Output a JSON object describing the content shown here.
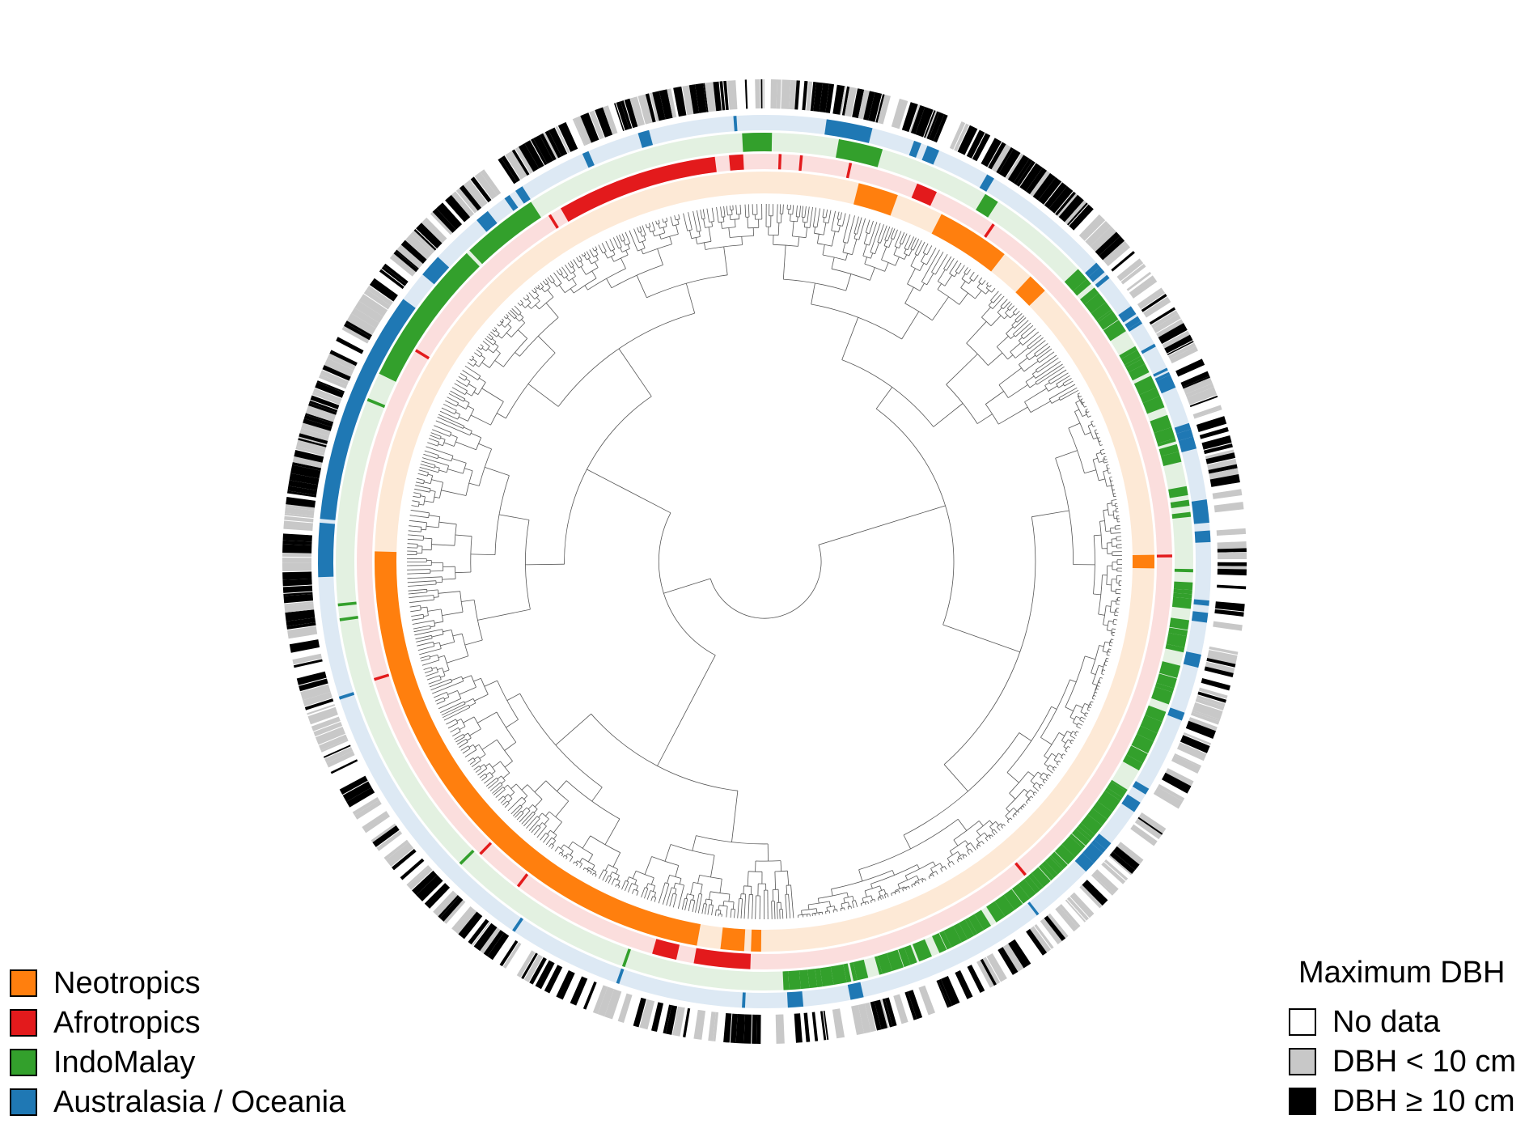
{
  "region_legend": {
    "items": [
      {
        "label": "Neotropics",
        "color": "#ff7f0e"
      },
      {
        "label": "Afrotropics",
        "color": "#e31a1c"
      },
      {
        "label": "IndoMalay",
        "color": "#33a02c"
      },
      {
        "label": "Australasia / Oceania",
        "color": "#1f78b4"
      }
    ]
  },
  "dbh_legend": {
    "title": "Maximum DBH",
    "items": [
      {
        "label": "No data",
        "color": "#ffffff"
      },
      {
        "label": "DBH < 10 cm",
        "color": "#c8c8c8"
      },
      {
        "label": "DBH ≥ 10 cm",
        "color": "#000000"
      }
    ]
  },
  "ring_colors": {
    "neotropics": "#ff7f0e",
    "neotropics_bg": "#fde9d6",
    "afrotropics": "#e31a1c",
    "afrotropics_bg": "#fbdedd",
    "indomalay": "#33a02c",
    "indomalay_bg": "#e3f1e1",
    "australasia": "#1f78b4",
    "australasia_bg": "#dde9f4",
    "tree_lines": "#555555"
  }
}
